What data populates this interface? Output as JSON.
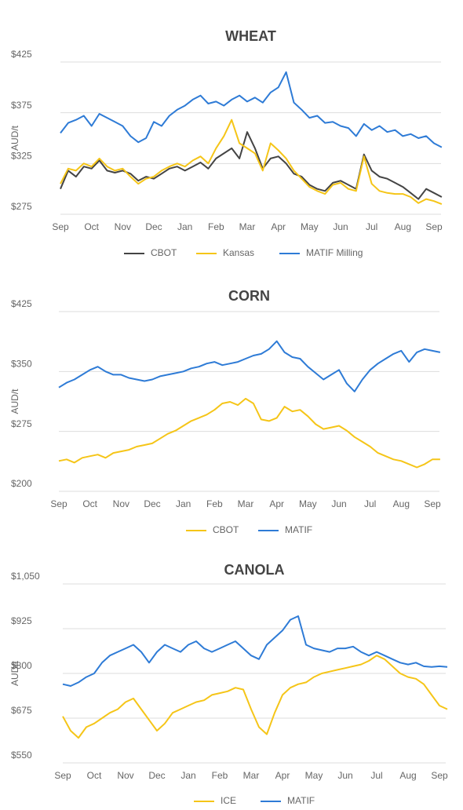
{
  "chart_data": [
    {
      "type": "line",
      "title": "WHEAT",
      "y_label": "AUD/t",
      "categories": [
        "Sep",
        null,
        null,
        null,
        "Oct",
        null,
        null,
        null,
        "Nov",
        null,
        null,
        null,
        "Dec",
        null,
        null,
        null,
        "Jan",
        null,
        null,
        null,
        "Feb",
        null,
        null,
        null,
        "Mar",
        null,
        null,
        null,
        "Apr",
        null,
        null,
        null,
        "May",
        null,
        null,
        null,
        "Jun",
        null,
        null,
        null,
        "Jul",
        null,
        null,
        null,
        "Aug",
        null,
        null,
        null,
        "Sep",
        null
      ],
      "ylim": [
        275,
        425
      ],
      "yticks": [
        {
          "value": 275,
          "label": "$275"
        },
        {
          "value": 325,
          "label": "$325"
        },
        {
          "value": 375,
          "label": "$375"
        },
        {
          "value": 425,
          "label": "$425"
        }
      ],
      "grid": true,
      "series": [
        {
          "name": "CBOT",
          "color": "#444444",
          "values": [
            300,
            318,
            312,
            322,
            320,
            328,
            318,
            316,
            318,
            315,
            308,
            312,
            310,
            315,
            320,
            322,
            318,
            322,
            326,
            320,
            330,
            335,
            340,
            330,
            356,
            340,
            320,
            330,
            332,
            325,
            315,
            312,
            304,
            300,
            298,
            306,
            308,
            304,
            300,
            334,
            318,
            312,
            310,
            306,
            302,
            296,
            290,
            300,
            296,
            292
          ]
        },
        {
          "name": "Kansas",
          "color": "#f5c518",
          "values": [
            305,
            320,
            318,
            325,
            322,
            330,
            322,
            318,
            320,
            312,
            305,
            310,
            312,
            318,
            322,
            325,
            322,
            328,
            332,
            325,
            340,
            352,
            368,
            345,
            340,
            335,
            318,
            345,
            338,
            330,
            318,
            310,
            302,
            298,
            295,
            304,
            306,
            300,
            298,
            332,
            305,
            298,
            296,
            295,
            295,
            292,
            286,
            290,
            288,
            285
          ]
        },
        {
          "name": "MATIF Milling",
          "color": "#2e7bd6",
          "values": [
            355,
            365,
            368,
            372,
            362,
            374,
            370,
            366,
            362,
            352,
            346,
            350,
            366,
            362,
            372,
            378,
            382,
            388,
            392,
            384,
            386,
            382,
            388,
            392,
            386,
            390,
            385,
            395,
            400,
            415,
            385,
            378,
            370,
            372,
            365,
            366,
            362,
            360,
            352,
            364,
            358,
            362,
            356,
            358,
            352,
            354,
            350,
            352,
            345,
            341
          ]
        }
      ]
    },
    {
      "type": "line",
      "title": "CORN",
      "y_label": "AUD/t",
      "categories": [
        "Sep",
        null,
        null,
        null,
        "Oct",
        null,
        null,
        null,
        "Nov",
        null,
        null,
        null,
        "Dec",
        null,
        null,
        null,
        "Jan",
        null,
        null,
        null,
        "Feb",
        null,
        null,
        null,
        "Mar",
        null,
        null,
        null,
        "Apr",
        null,
        null,
        null,
        "May",
        null,
        null,
        null,
        "Jun",
        null,
        null,
        null,
        "Jul",
        null,
        null,
        null,
        "Aug",
        null,
        null,
        null,
        "Sep",
        null
      ],
      "ylim": [
        200,
        425
      ],
      "yticks": [
        {
          "value": 200,
          "label": "$200"
        },
        {
          "value": 275,
          "label": "$275"
        },
        {
          "value": 350,
          "label": "$350"
        },
        {
          "value": 425,
          "label": "$425"
        }
      ],
      "grid": true,
      "series": [
        {
          "name": "CBOT",
          "color": "#f5c518",
          "values": [
            238,
            240,
            236,
            242,
            244,
            246,
            242,
            248,
            250,
            252,
            256,
            258,
            260,
            266,
            272,
            276,
            282,
            288,
            292,
            296,
            302,
            310,
            312,
            308,
            316,
            310,
            290,
            288,
            292,
            306,
            300,
            302,
            294,
            284,
            278,
            280,
            282,
            276,
            268,
            262,
            256,
            248,
            244,
            240,
            238,
            234,
            230,
            234,
            240,
            240
          ]
        },
        {
          "name": "MATIF",
          "color": "#2e7bd6",
          "values": [
            330,
            336,
            340,
            346,
            352,
            356,
            350,
            346,
            346,
            342,
            340,
            338,
            340,
            344,
            346,
            348,
            350,
            354,
            356,
            360,
            362,
            358,
            360,
            362,
            366,
            370,
            372,
            378,
            388,
            374,
            368,
            366,
            356,
            348,
            340,
            346,
            352,
            335,
            325,
            340,
            352,
            360,
            366,
            372,
            376,
            362,
            374,
            378,
            376,
            374
          ]
        }
      ]
    },
    {
      "type": "line",
      "title": "CANOLA",
      "y_label": "AUD/t",
      "categories": [
        "Sep",
        null,
        null,
        null,
        "Oct",
        null,
        null,
        null,
        "Nov",
        null,
        null,
        null,
        "Dec",
        null,
        null,
        null,
        "Jan",
        null,
        null,
        null,
        "Feb",
        null,
        null,
        null,
        "Mar",
        null,
        null,
        null,
        "Apr",
        null,
        null,
        null,
        "May",
        null,
        null,
        null,
        "Jun",
        null,
        null,
        null,
        "Jul",
        null,
        null,
        null,
        "Aug",
        null,
        null,
        null,
        "Sep",
        null
      ],
      "ylim": [
        550,
        1050
      ],
      "yticks": [
        {
          "value": 550,
          "label": "$550"
        },
        {
          "value": 675,
          "label": "$675"
        },
        {
          "value": 800,
          "label": "$800"
        },
        {
          "value": 925,
          "label": "$925"
        },
        {
          "value": 1050,
          "label": "$1,050"
        }
      ],
      "grid": true,
      "series": [
        {
          "name": "ICE",
          "color": "#f5c518",
          "values": [
            680,
            640,
            620,
            650,
            660,
            675,
            690,
            700,
            720,
            730,
            700,
            670,
            640,
            660,
            690,
            700,
            710,
            720,
            725,
            740,
            745,
            750,
            760,
            755,
            700,
            650,
            630,
            690,
            740,
            760,
            770,
            775,
            790,
            800,
            805,
            810,
            815,
            820,
            825,
            835,
            850,
            840,
            820,
            800,
            790,
            785,
            770,
            740,
            710,
            700
          ]
        },
        {
          "name": "MATIF",
          "color": "#2e7bd6",
          "values": [
            770,
            765,
            775,
            790,
            800,
            830,
            850,
            860,
            870,
            880,
            860,
            830,
            860,
            880,
            870,
            860,
            880,
            890,
            870,
            860,
            870,
            880,
            890,
            870,
            850,
            840,
            880,
            900,
            920,
            950,
            960,
            880,
            870,
            865,
            860,
            870,
            870,
            875,
            860,
            850,
            860,
            850,
            840,
            830,
            825,
            830,
            820,
            818,
            820,
            818
          ]
        }
      ]
    }
  ]
}
